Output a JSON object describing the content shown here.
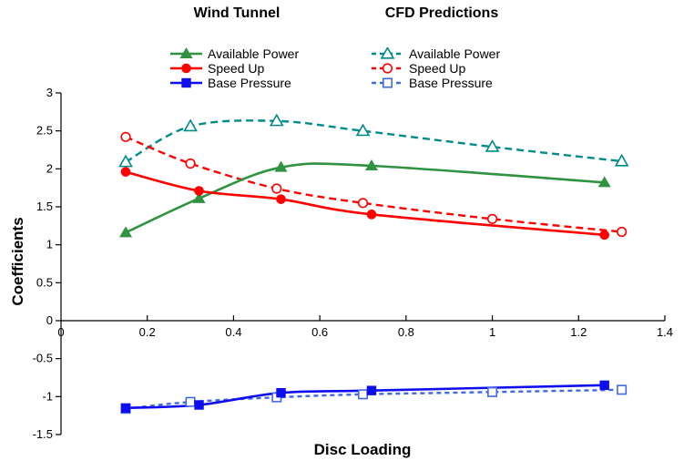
{
  "page": {
    "background": "#FFFFFF"
  },
  "chart_data": {
    "type": "line",
    "title": "",
    "xlabel": "Disc Loading",
    "ylabel": "Coefficients",
    "xlim": [
      0,
      1.4
    ],
    "ylim": [
      -1.5,
      3
    ],
    "grid": false,
    "legend_position": "top",
    "x_ticks": [
      0,
      0.2,
      0.4,
      0.6,
      0.8,
      1,
      1.2,
      1.4
    ],
    "x_tick_labels": [
      "0",
      "0.2",
      "0.4",
      "0.6",
      "0.8",
      "1",
      "1.2",
      "1.4"
    ],
    "y_ticks": [
      3,
      2.5,
      2,
      1.5,
      1,
      0.5,
      0,
      -0.5,
      -1,
      -1.5
    ],
    "y_tick_labels": [
      "3",
      "2.5",
      "2",
      "1.5",
      "1",
      "0.5",
      "0",
      "-0.5",
      "-1",
      "-1.5"
    ],
    "groups": [
      {
        "name": "Wind Tunnel",
        "line_style": "solid",
        "series": [
          {
            "name": "Available Power",
            "color": "#2F9342",
            "marker": "triangle",
            "marker_fill": "filled",
            "x": [
              0.15,
              0.32,
              0.51,
              0.72,
              1.26
            ],
            "y": [
              1.16,
              1.61,
              2.02,
              2.04,
              1.82
            ]
          },
          {
            "name": "Speed Up",
            "color": "#FF0000",
            "marker": "circle",
            "marker_fill": "filled",
            "x": [
              0.15,
              0.32,
              0.51,
              0.72,
              1.26
            ],
            "y": [
              1.96,
              1.71,
              1.6,
              1.4,
              1.13
            ]
          },
          {
            "name": "Base Pressure",
            "color": "#0D0DF0",
            "marker": "square",
            "marker_fill": "filled",
            "x": [
              0.15,
              0.32,
              0.51,
              0.72,
              1.26
            ],
            "y": [
              -1.15,
              -1.11,
              -0.95,
              -0.92,
              -0.85
            ]
          }
        ]
      },
      {
        "name": "CFD Predictions",
        "line_style": "dashed",
        "series": [
          {
            "name": "Available Power",
            "color": "#008B8B",
            "marker": "triangle",
            "marker_fill": "open",
            "dash": "8,5",
            "x": [
              0.15,
              0.3,
              0.5,
              0.7,
              1.0,
              1.3
            ],
            "y": [
              2.09,
              2.56,
              2.63,
              2.5,
              2.29,
              2.1
            ]
          },
          {
            "name": "Speed Up",
            "color": "#FF0000",
            "marker": "circle",
            "marker_fill": "open",
            "dash": "8,5",
            "x": [
              0.15,
              0.3,
              0.5,
              0.7,
              1.0,
              1.3
            ],
            "y": [
              2.42,
              2.07,
              1.74,
              1.55,
              1.34,
              1.17
            ]
          },
          {
            "name": "Base Pressure",
            "color": "#4169E1",
            "marker": "square",
            "marker_fill": "open",
            "dash": "5,4",
            "x": [
              0.15,
              0.3,
              0.5,
              0.7,
              1.0,
              1.3
            ],
            "y": [
              -1.16,
              -1.07,
              -1.01,
              -0.97,
              -0.94,
              -0.91
            ]
          }
        ]
      }
    ]
  }
}
